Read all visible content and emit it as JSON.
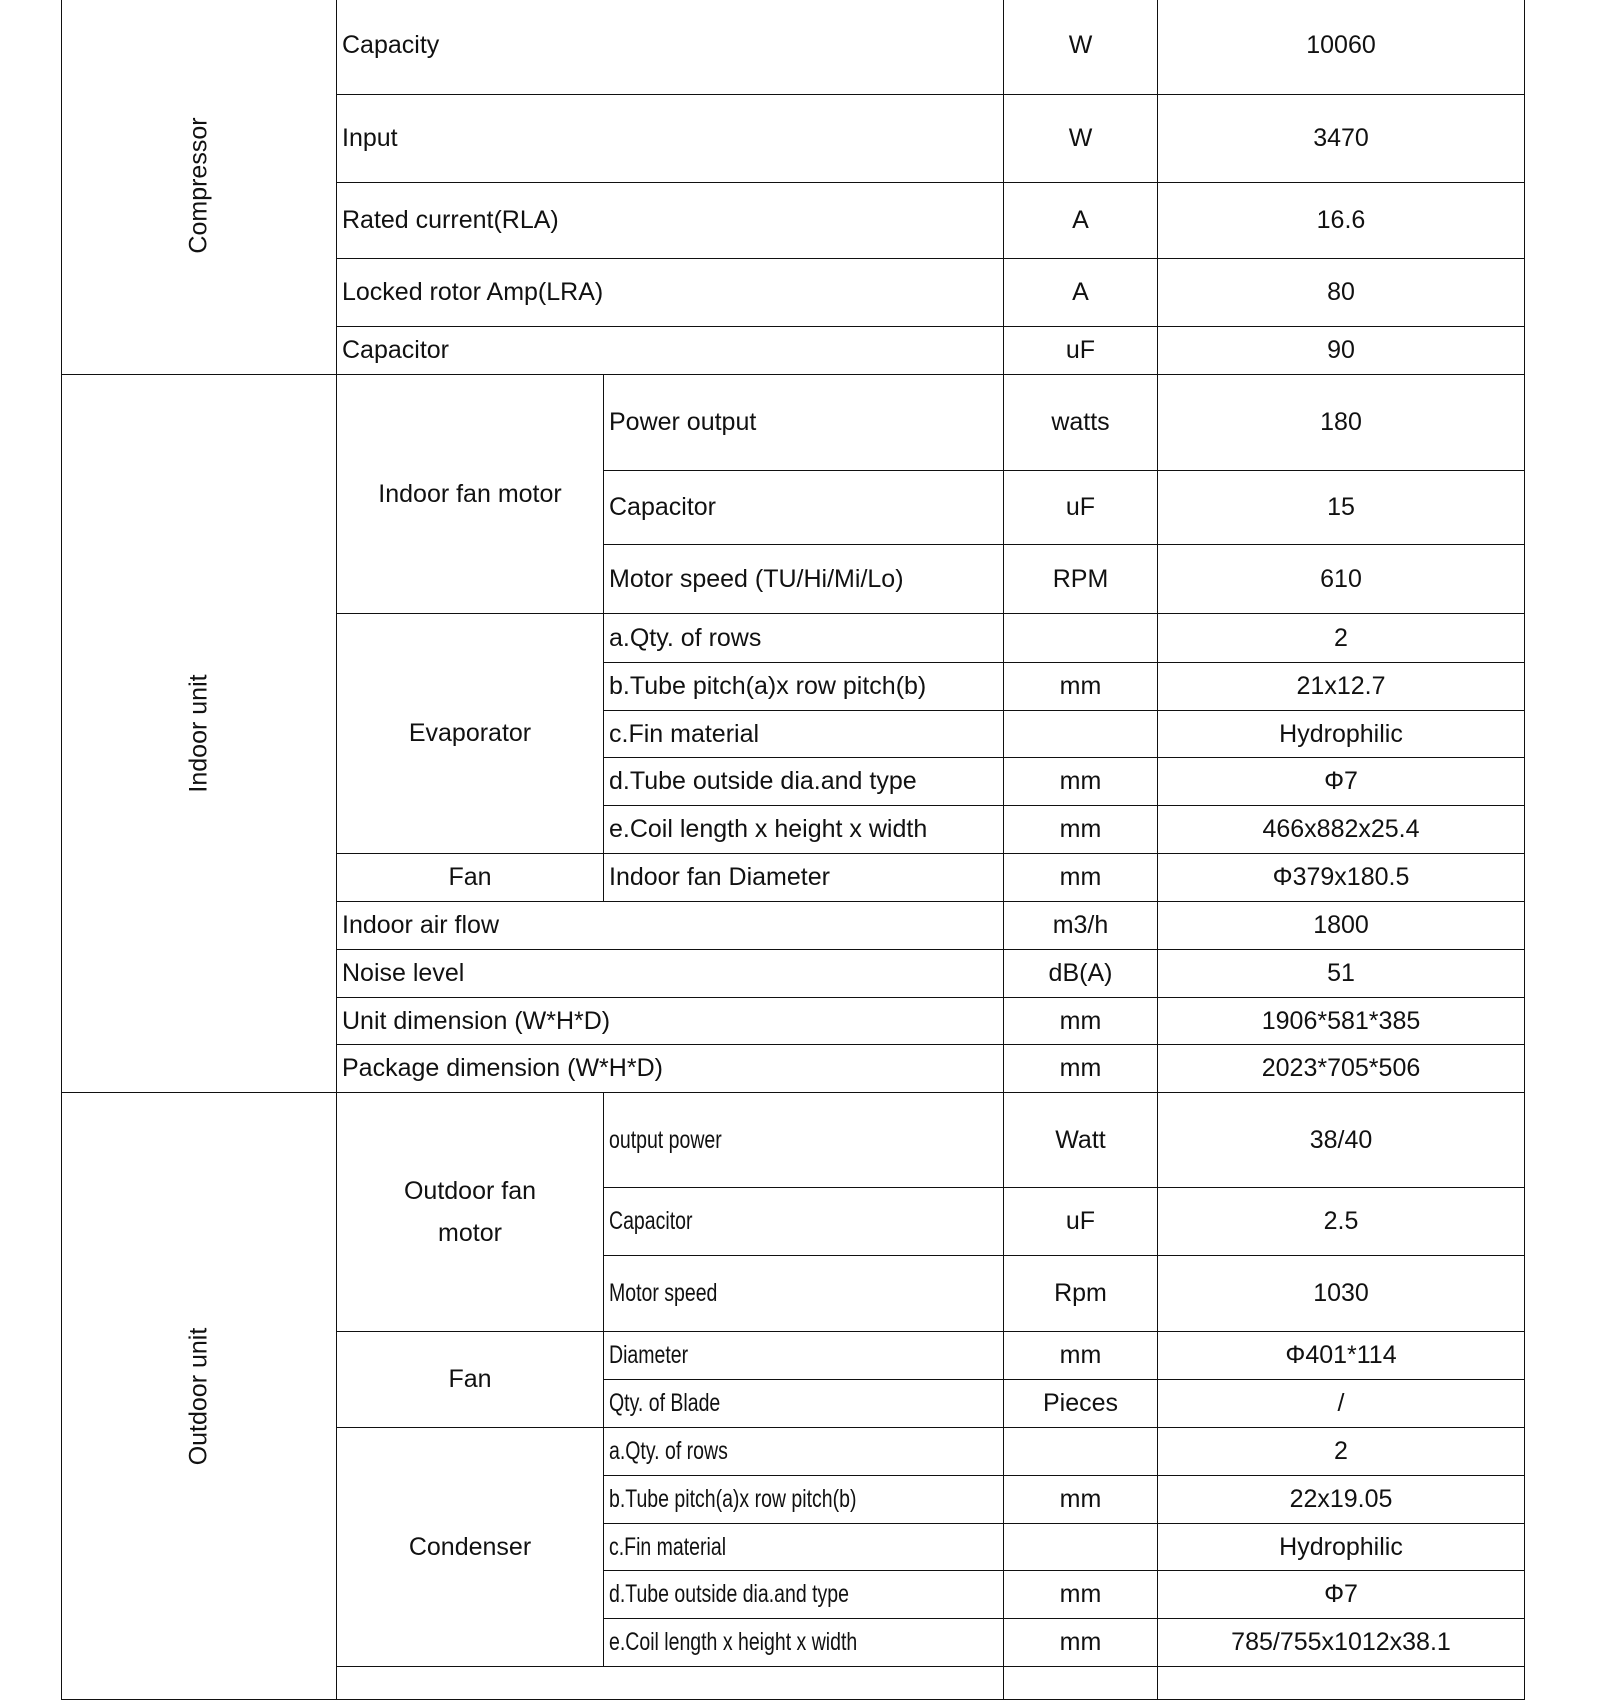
{
  "compressor": {
    "label": "Compressor",
    "rows": [
      {
        "param": "Capacity",
        "unit": "W",
        "value": "10060"
      },
      {
        "param": "Input",
        "unit": "W",
        "value": "3470"
      },
      {
        "param": "Rated current(RLA)",
        "unit": "A",
        "value": "16.6"
      },
      {
        "param": "Locked rotor Amp(LRA)",
        "unit": "A",
        "value": "80"
      },
      {
        "param": "Capacitor",
        "unit": "uF",
        "value": "90"
      }
    ]
  },
  "indoor_unit": {
    "label": "Indoor unit",
    "fan_motor": {
      "label": "Indoor fan motor",
      "rows": [
        {
          "param": "Power output",
          "unit": "watts",
          "value": "180"
        },
        {
          "param": "Capacitor",
          "unit": "uF",
          "value": "15"
        },
        {
          "param": "Motor speed  (TU/Hi/Mi/Lo)",
          "unit": "RPM",
          "value": "610"
        }
      ]
    },
    "evaporator": {
      "label": "Evaporator",
      "rows": [
        {
          "param": "a.Qty. of rows",
          "unit": "",
          "value": "2"
        },
        {
          "param": "b.Tube pitch(a)x row pitch(b)",
          "unit": "mm",
          "value": "21x12.7"
        },
        {
          "param": "c.Fin material",
          "unit": "",
          "value": "Hydrophilic"
        },
        {
          "param": "d.Tube outside dia.and type",
          "unit": "mm",
          "value": "Φ7"
        },
        {
          "param": "e.Coil length x height x width",
          "unit": "mm",
          "value": "466x882x25.4"
        }
      ]
    },
    "fan": {
      "label": "Fan",
      "rows": [
        {
          "param": "Indoor fan Diameter",
          "unit": "mm",
          "value": "Φ379x180.5"
        }
      ]
    },
    "rows": [
      {
        "param": "Indoor air flow",
        "unit": "m3/h",
        "value": "1800"
      },
      {
        "param": "Noise level",
        "unit": "dB(A)",
        "value": "51"
      },
      {
        "param": "Unit dimension (W*H*D)",
        "unit": "mm",
        "value": "1906*581*385"
      },
      {
        "param": "Package dimension (W*H*D)",
        "unit": "mm",
        "value": "2023*705*506"
      }
    ]
  },
  "outdoor_unit": {
    "label": "Outdoor unit",
    "fan_motor": {
      "label": "Outdoor fan motor",
      "rows": [
        {
          "param": "output power",
          "unit": "Watt",
          "value": "38/40"
        },
        {
          "param": "Capacitor",
          "unit": "uF",
          "value": "2.5"
        },
        {
          "param": "Motor speed",
          "unit": "Rpm",
          "value": "1030"
        }
      ]
    },
    "fan": {
      "label": "Fan",
      "rows": [
        {
          "param": "Diameter",
          "unit": "mm",
          "value": "Φ401*114"
        },
        {
          "param": "Qty. of Blade",
          "unit": "Pieces",
          "value": "/"
        }
      ]
    },
    "condenser": {
      "label": "Condenser",
      "rows": [
        {
          "param": "a.Qty. of rows",
          "unit": "",
          "value": "2"
        },
        {
          "param": "b.Tube pitch(a)x row pitch(b)",
          "unit": "mm",
          "value": "22x19.05"
        },
        {
          "param": "c.Fin material",
          "unit": "",
          "value": "Hydrophilic"
        },
        {
          "param": "d.Tube outside dia.and type",
          "unit": "mm",
          "value": "Φ7"
        },
        {
          "param": "e.Coil length x height x width",
          "unit": "mm",
          "value": "785/755x1012x38.1"
        }
      ]
    }
  }
}
